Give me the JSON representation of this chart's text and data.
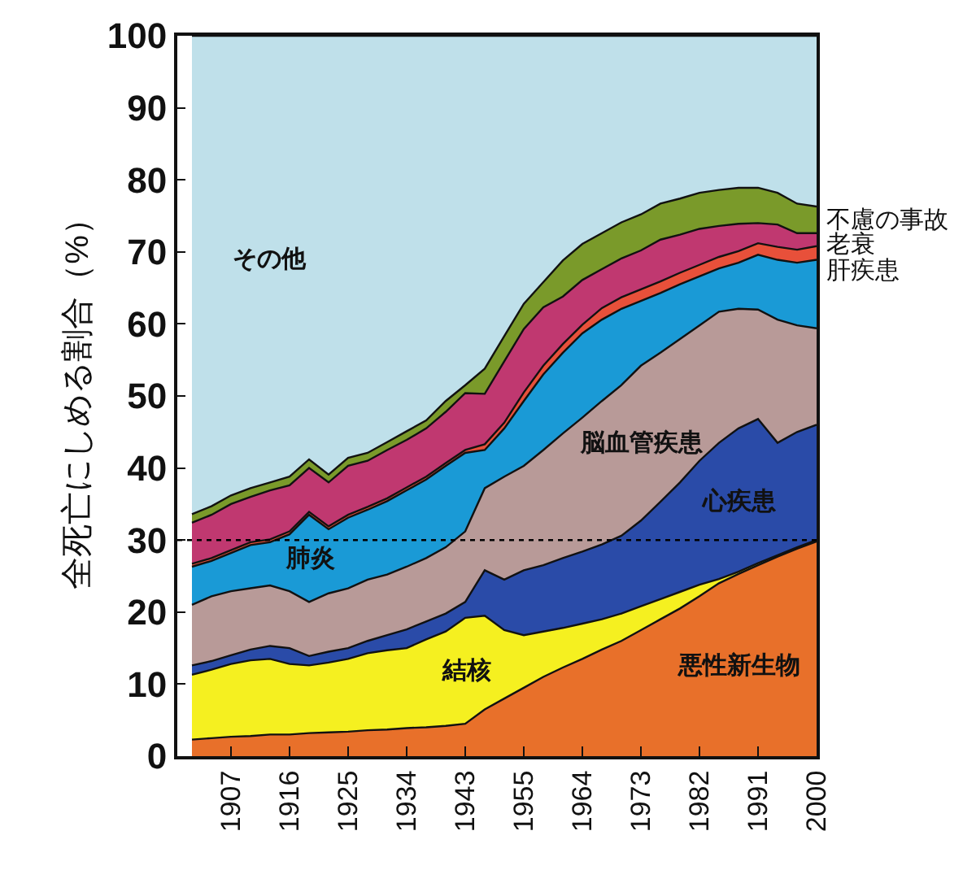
{
  "chart_data": {
    "type": "area",
    "stacked": true,
    "ylabel": "全死亡にしめる割合（%）",
    "categories": [
      null,
      null,
      "1907",
      null,
      null,
      "1916",
      null,
      null,
      "1925",
      null,
      null,
      "1934",
      null,
      null,
      "1943",
      null,
      null,
      "1955",
      null,
      null,
      "1964",
      null,
      null,
      "1973",
      null,
      null,
      "1982",
      null,
      null,
      "1991",
      null,
      null,
      "2000"
    ],
    "ylim": [
      0,
      100
    ],
    "yticks": [
      0,
      10,
      20,
      30,
      40,
      50,
      60,
      70,
      80,
      90,
      100
    ],
    "legend": false,
    "grid": false,
    "ref_lines": [
      {
        "axis": "y",
        "value": 30,
        "color": "#000000",
        "line_style": "dotted"
      }
    ],
    "series": [
      {
        "name": "悪性新生物",
        "color": "#e8702a",
        "values": [
          2.3,
          2.5,
          2.7,
          2.8,
          3.0,
          3.0,
          3.2,
          3.3,
          3.4,
          3.6,
          3.7,
          3.9,
          4.0,
          4.2,
          4.5,
          6.5,
          8.0,
          9.5,
          11.0,
          12.3,
          13.5,
          14.8,
          16.0,
          17.5,
          19.0,
          20.5,
          22.2,
          24.0,
          25.3,
          26.5,
          27.7,
          28.8,
          29.8
        ]
      },
      {
        "name": "結核",
        "color": "#f5f020",
        "values": [
          9.0,
          9.5,
          10.1,
          10.5,
          10.5,
          9.8,
          9.4,
          9.7,
          10.1,
          10.7,
          11.0,
          11.1,
          12.2,
          13.1,
          14.7,
          13.0,
          9.5,
          7.3,
          6.3,
          5.5,
          4.9,
          4.2,
          3.8,
          3.3,
          2.8,
          2.3,
          1.6,
          0.6,
          0.3,
          0.3,
          0.2,
          0.2,
          0.2
        ]
      },
      {
        "name": "心疾患",
        "color": "#2a4ba8",
        "values": [
          1.3,
          1.2,
          1.2,
          1.5,
          1.8,
          2.2,
          1.3,
          1.5,
          1.5,
          1.7,
          2.1,
          2.6,
          2.5,
          2.5,
          2.2,
          6.3,
          7.0,
          9.0,
          9.2,
          9.7,
          10.0,
          10.4,
          10.8,
          11.9,
          13.5,
          15.2,
          17.2,
          18.9,
          19.9,
          20.0,
          15.6,
          16.0,
          16.0
        ]
      },
      {
        "name": "脳血管疾患",
        "color": "#b89a98",
        "values": [
          8.4,
          9.0,
          8.9,
          8.5,
          8.4,
          7.9,
          7.5,
          8.1,
          8.3,
          8.5,
          8.4,
          8.7,
          8.8,
          9.2,
          9.8,
          11.4,
          14.3,
          14.5,
          16.0,
          17.3,
          18.6,
          19.9,
          20.9,
          21.5,
          20.7,
          19.9,
          18.8,
          18.2,
          16.6,
          15.2,
          17.1,
          14.8,
          13.4
        ]
      },
      {
        "name": "肺炎",
        "color": "#1a9ad6",
        "values": [
          5.3,
          4.9,
          5.3,
          6.0,
          6.0,
          7.9,
          12.1,
          8.9,
          9.8,
          9.7,
          10.2,
          10.6,
          10.9,
          11.3,
          10.9,
          5.3,
          6.7,
          9.0,
          10.5,
          11.2,
          11.7,
          11.3,
          10.6,
          9.0,
          8.3,
          7.6,
          6.8,
          6.0,
          6.4,
          7.6,
          8.3,
          8.7,
          9.5
        ]
      },
      {
        "name": "肝疾患",
        "color": "#e8503a",
        "values": [
          0.4,
          0.4,
          0.4,
          0.4,
          0.4,
          0.4,
          0.4,
          0.4,
          0.4,
          0.4,
          0.4,
          0.4,
          0.4,
          0.4,
          0.4,
          0.8,
          0.8,
          1.2,
          1.2,
          1.2,
          1.2,
          1.6,
          1.6,
          1.6,
          1.6,
          1.6,
          1.6,
          1.6,
          1.6,
          1.6,
          1.8,
          1.8,
          1.9
        ]
      },
      {
        "name": "老衰",
        "color": "#c03870",
        "values": [
          5.7,
          6.0,
          6.4,
          6.3,
          6.8,
          6.4,
          6.1,
          6.1,
          6.8,
          6.4,
          6.7,
          6.6,
          6.7,
          7.1,
          7.9,
          7.0,
          8.5,
          8.8,
          8.1,
          6.6,
          6.2,
          5.4,
          5.4,
          5.4,
          5.8,
          5.3,
          5.0,
          4.3,
          3.8,
          2.8,
          3.1,
          2.3,
          1.8
        ]
      },
      {
        "name": "不慮の事故",
        "color": "#7a9a2a",
        "values": [
          1.2,
          1.2,
          1.2,
          1.2,
          1.1,
          1.2,
          1.2,
          1.1,
          1.1,
          1.1,
          1.1,
          1.2,
          1.1,
          1.5,
          1.1,
          3.5,
          3.5,
          3.5,
          3.5,
          5.0,
          5.0,
          5.0,
          5.0,
          5.0,
          5.0,
          5.0,
          5.0,
          5.0,
          5.0,
          4.9,
          4.4,
          4.1,
          3.7
        ]
      },
      {
        "name": "その他",
        "color": "#bfe0ea",
        "values": [
          66.4,
          65.3,
          63.8,
          62.8,
          62.0,
          61.2,
          58.8,
          60.9,
          58.6,
          57.9,
          56.4,
          54.9,
          53.4,
          50.7,
          48.5,
          46.2,
          41.7,
          37.2,
          34.2,
          31.2,
          28.9,
          27.4,
          25.9,
          24.8,
          23.3,
          22.6,
          21.8,
          21.4,
          21.1,
          21.1,
          21.8,
          23.3,
          23.7
        ]
      }
    ]
  }
}
